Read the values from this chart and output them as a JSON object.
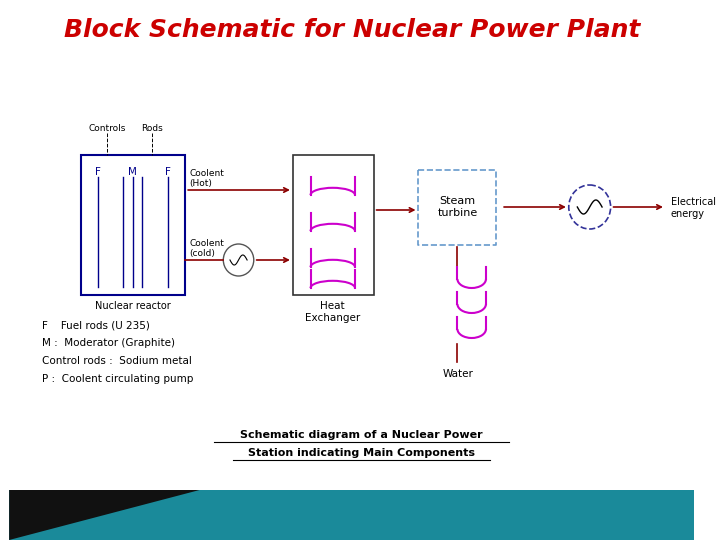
{
  "title": "Block Schematic for Nuclear Power Plant",
  "title_color": "#CC0000",
  "title_fontsize": 18,
  "bg_color": "#ffffff",
  "pipe_color": "#8B0000",
  "reactor_color": "#00008B",
  "coil_color": "#CC00CC",
  "turbine_color": "#6699CC",
  "legend_lines": [
    "F    Fuel rods (U 235)",
    "M :  Moderator (Graphite)",
    "Control rods :  Sodium metal",
    "P :  Coolent circulating pump"
  ],
  "caption_line1": "Schematic diagram of a Nuclear Power",
  "caption_line2": "Station indicating Main Components"
}
